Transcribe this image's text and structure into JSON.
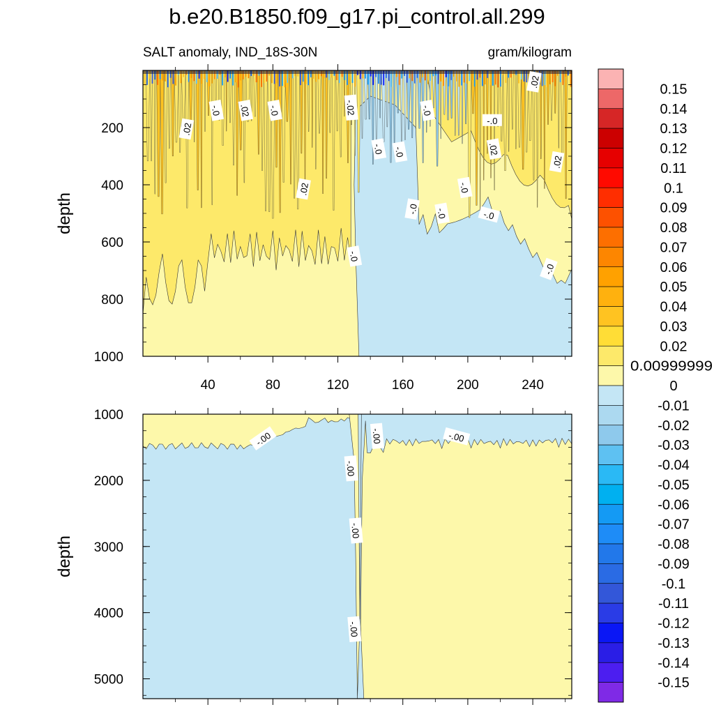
{
  "chart_data": {
    "type": "contour",
    "title": "b.e20.B1850.f09_g17.pi_control.all.299",
    "subtitle_left": "SALT anomaly, IND_18S-30N",
    "subtitle_right": "gram/kilogram",
    "ylabel": "depth",
    "x_ticks": [
      "40",
      "80",
      "120",
      "160",
      "200",
      "240"
    ],
    "x_range": [
      0,
      264
    ],
    "panels": [
      {
        "name": "upper",
        "ylim": [
          0,
          1000
        ],
        "y_ticks": [
          "200",
          "400",
          "600",
          "800",
          "1000"
        ],
        "x_tick_labels_shown": true,
        "contour_labels": [
          ".02",
          "-.0",
          ".02",
          "-.0",
          "-.02",
          "-.0",
          ".02",
          ".02",
          ".02",
          "-.0",
          "-.0",
          "-.0",
          ".02",
          "-.0",
          "-.0",
          "-.0",
          "-.0",
          "-.0",
          "-.0"
        ]
      },
      {
        "name": "lower",
        "ylim": [
          1000,
          5300
        ],
        "y_ticks": [
          "1000",
          "2000",
          "3000",
          "4000",
          "5000"
        ],
        "x_tick_labels_shown": false,
        "contour_labels": [
          "-.00",
          "-.00",
          "-.00",
          "-.00",
          "-.00",
          "-.00"
        ]
      }
    ],
    "colorbar": {
      "labels": [
        "0.15",
        "0.14",
        "0.13",
        "0.12",
        "0.11",
        "0.1",
        "0.09",
        "0.08",
        "0.07",
        "0.06",
        "0.05",
        "0.04",
        "0.03",
        "0.02",
        "0.00999999",
        "0",
        "-0.01",
        "-0.02",
        "-0.03",
        "-0.04",
        "-0.05",
        "-0.06",
        "-0.07",
        "-0.08",
        "-0.09",
        "-0.1",
        "-0.11",
        "-0.12",
        "-0.13",
        "-0.14",
        "-0.15"
      ],
      "colors": [
        "#fbb3b3",
        "#ed6868",
        "#d62626",
        "#cc0000",
        "#e60000",
        "#ff0a00",
        "#ff2e00",
        "#fd5100",
        "#fd6f00",
        "#fd8600",
        "#ffa100",
        "#ffb10e",
        "#ffc321",
        "#ffdd36",
        "#fde96a",
        "#fdf8aa",
        "#c4e6f5",
        "#acd9f0",
        "#8ec9ec",
        "#5ec1f2",
        "#2ab9f5",
        "#00b0f0",
        "#149af4",
        "#1e8cf7",
        "#2278ea",
        "#2a6be4",
        "#3357d9",
        "#2a3ce6",
        "#0a17f5",
        "#2a1ee6",
        "#4c1ef0",
        "#7f2ae6"
      ]
    },
    "field_colors": {
      "positive_low": "#fdf8aa",
      "positive_mid": "#fde96a",
      "positive_high": "#ffc321",
      "negative_low": "#c4e6f5",
      "negative_mid": "#8ec9ec",
      "negative_high": "#2278ea"
    },
    "grid": false
  }
}
